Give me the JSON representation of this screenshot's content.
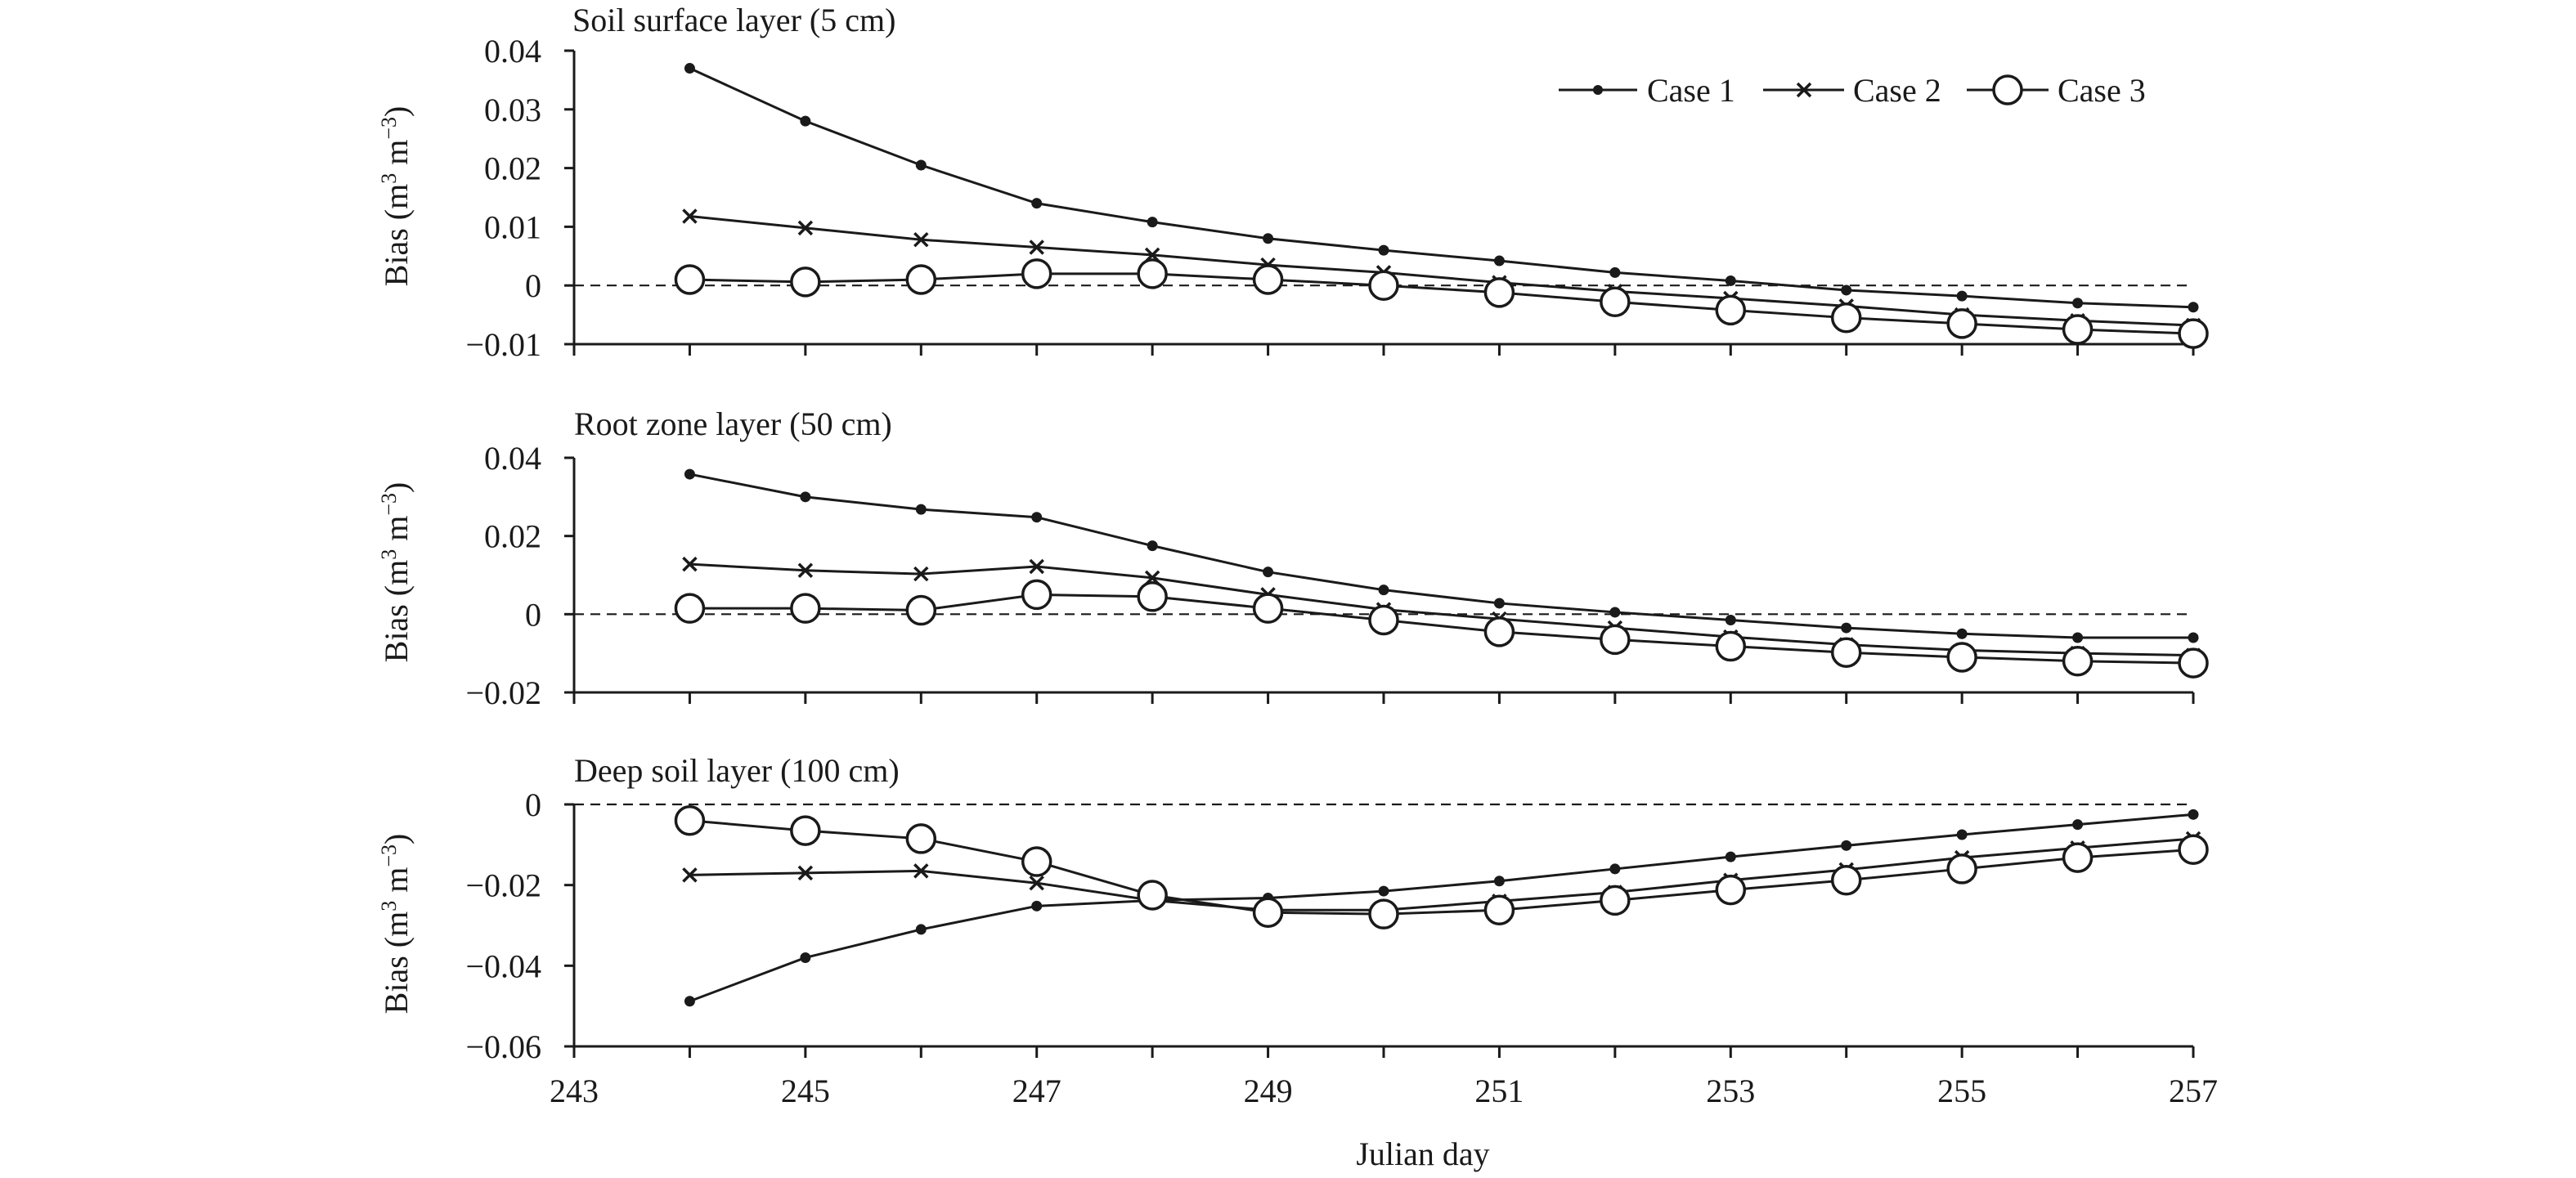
{
  "chart_data": [
    {
      "type": "line",
      "title": "Soil surface layer (5 cm)",
      "xlabel": "",
      "ylabel": "Bias (m3 m−3)",
      "xlim": [
        243,
        257
      ],
      "ylim": [
        -0.01,
        0.04
      ],
      "yticks": [
        0.04,
        0.03,
        0.02,
        0.01,
        0,
        -0.01
      ],
      "ytick_labels": [
        "0.04",
        "0.03",
        "0.02",
        "0.01",
        "0",
        "−0.01"
      ],
      "reference_line": 0,
      "legend": {
        "placement": "top-right",
        "entries": [
          "Case 1",
          "Case 2",
          "Case 3"
        ]
      },
      "x": [
        244,
        245,
        246,
        247,
        248,
        249,
        250,
        251,
        252,
        253,
        254,
        255,
        256,
        257
      ],
      "series": [
        {
          "name": "Case 1",
          "marker": "dot",
          "values": [
            0.037,
            0.028,
            0.0205,
            0.014,
            0.0108,
            0.008,
            0.006,
            0.0042,
            0.0022,
            0.0008,
            -0.0008,
            -0.0018,
            -0.003,
            -0.0037
          ]
        },
        {
          "name": "Case 2",
          "marker": "cross",
          "values": [
            0.0118,
            0.0098,
            0.0078,
            0.0065,
            0.0052,
            0.0035,
            0.0022,
            0.0005,
            -0.001,
            -0.0022,
            -0.0035,
            -0.005,
            -0.006,
            -0.0068
          ]
        },
        {
          "name": "Case 3",
          "marker": "circle",
          "values": [
            0.001,
            0.0006,
            0.001,
            0.002,
            0.002,
            0.001,
            0.0,
            -0.0012,
            -0.0028,
            -0.0042,
            -0.0055,
            -0.0065,
            -0.0075,
            -0.0082
          ]
        }
      ]
    },
    {
      "type": "line",
      "title": "Root zone layer (50 cm)",
      "xlabel": "",
      "ylabel": "Bias (m3 m−3)",
      "xlim": [
        243,
        257
      ],
      "ylim": [
        -0.02,
        0.04
      ],
      "yticks": [
        0.04,
        0.02,
        0,
        -0.02
      ],
      "ytick_labels": [
        "0.04",
        "0.02",
        "0",
        "−0.02"
      ],
      "reference_line": 0,
      "x": [
        244,
        245,
        246,
        247,
        248,
        249,
        250,
        251,
        252,
        253,
        254,
        255,
        256,
        257
      ],
      "series": [
        {
          "name": "Case 1",
          "marker": "dot",
          "values": [
            0.0358,
            0.03,
            0.0268,
            0.0248,
            0.0175,
            0.0108,
            0.0062,
            0.0028,
            0.0005,
            -0.0015,
            -0.0035,
            -0.005,
            -0.006,
            -0.006
          ]
        },
        {
          "name": "Case 2",
          "marker": "cross",
          "values": [
            0.0128,
            0.0112,
            0.0103,
            0.0122,
            0.0093,
            0.005,
            0.0012,
            -0.0012,
            -0.0035,
            -0.0058,
            -0.0078,
            -0.0092,
            -0.01,
            -0.0105
          ]
        },
        {
          "name": "Case 3",
          "marker": "circle",
          "values": [
            0.0015,
            0.0015,
            0.001,
            0.005,
            0.0045,
            0.0015,
            -0.0015,
            -0.0045,
            -0.0065,
            -0.0082,
            -0.0098,
            -0.011,
            -0.012,
            -0.0125
          ]
        }
      ]
    },
    {
      "type": "line",
      "title": "Deep soil layer (100 cm)",
      "xlabel": "Julian day",
      "ylabel": "Bias (m3 m−3)",
      "xlim": [
        243,
        257
      ],
      "ylim": [
        -0.06,
        0
      ],
      "yticks": [
        0,
        -0.02,
        -0.04,
        -0.06
      ],
      "ytick_labels": [
        "0",
        "−0.02",
        "−0.04",
        "−0.06"
      ],
      "reference_line": 0,
      "xticks": [
        243,
        245,
        247,
        249,
        251,
        253,
        255,
        257
      ],
      "xtick_labels": [
        "243",
        "245",
        "247",
        "249",
        "251",
        "253",
        "255",
        "257"
      ],
      "x": [
        244,
        245,
        246,
        247,
        248,
        249,
        250,
        251,
        252,
        253,
        254,
        255,
        256,
        257
      ],
      "series": [
        {
          "name": "Case 1",
          "marker": "dot",
          "values": [
            -0.0488,
            -0.038,
            -0.031,
            -0.0252,
            -0.0238,
            -0.0232,
            -0.0215,
            -0.019,
            -0.016,
            -0.013,
            -0.0102,
            -0.0075,
            -0.005,
            -0.0025
          ]
        },
        {
          "name": "Case 2",
          "marker": "cross",
          "values": [
            -0.0175,
            -0.017,
            -0.0165,
            -0.0195,
            -0.0238,
            -0.0262,
            -0.0262,
            -0.024,
            -0.0218,
            -0.0188,
            -0.0162,
            -0.0132,
            -0.0108,
            -0.0085
          ]
        },
        {
          "name": "Case 3",
          "marker": "circle",
          "values": [
            -0.004,
            -0.0065,
            -0.0085,
            -0.0142,
            -0.0225,
            -0.0268,
            -0.0272,
            -0.0262,
            -0.0238,
            -0.0212,
            -0.0188,
            -0.016,
            -0.0132,
            -0.0112
          ]
        }
      ]
    }
  ]
}
